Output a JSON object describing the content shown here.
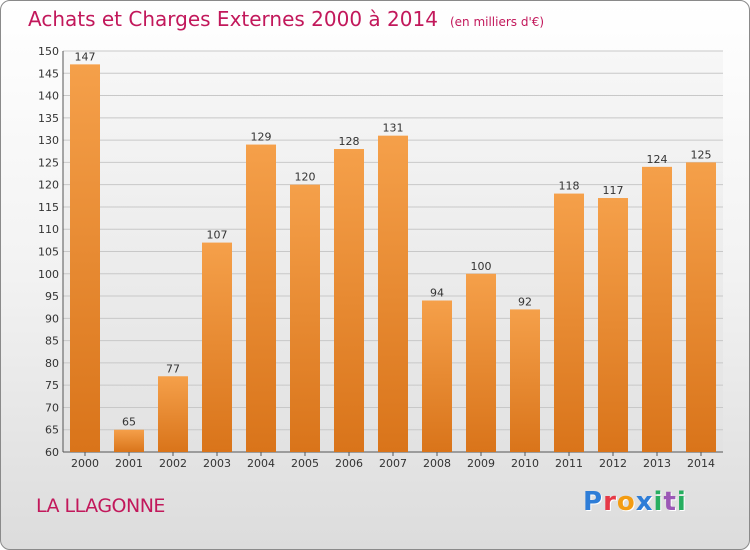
{
  "title": "Achats et Charges Externes 2000 à 2014",
  "unit": "(en milliers d'€)",
  "place": "LA LLAGONNE",
  "brand": "Proxiti",
  "brand_colors": [
    "#2e7dd7",
    "#e63946",
    "#f39c12",
    "#2e7dd7",
    "#27ae60",
    "#9b59b6",
    "#27ae60"
  ],
  "chart_data": {
    "type": "bar",
    "categories": [
      "2000",
      "2001",
      "2002",
      "2003",
      "2004",
      "2005",
      "2006",
      "2007",
      "2008",
      "2009",
      "2010",
      "2011",
      "2012",
      "2013",
      "2014"
    ],
    "values": [
      147,
      65,
      77,
      107,
      129,
      120,
      128,
      131,
      94,
      100,
      92,
      118,
      117,
      124,
      125
    ],
    "ylim": [
      60,
      150
    ],
    "ytick_step": 5,
    "grid": true,
    "bar_color_top": "#f5a04a",
    "bar_color_bottom": "#d9741a"
  }
}
